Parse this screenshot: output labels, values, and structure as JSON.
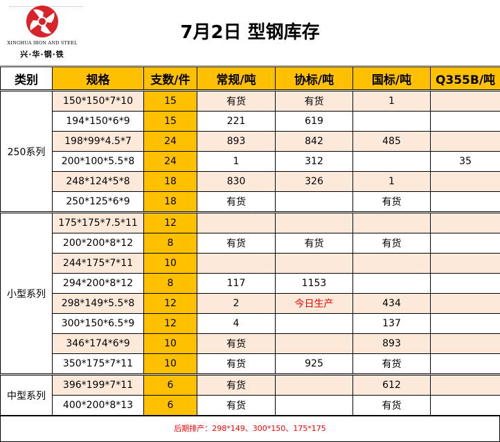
{
  "header": {
    "title": "7月2日  型钢库存",
    "logo_en": "XINGHUA IRON AND STEEL",
    "logo_cn": "兴·华·钢·铁"
  },
  "table": {
    "columns": [
      "类别",
      "规格",
      "支数/件",
      "常规/吨",
      "协标/吨",
      "国标/吨",
      "Q355B/吨"
    ],
    "groups": [
      {
        "category": "250系列",
        "rows": [
          {
            "spec": "150*150*7*10",
            "qty": "15",
            "changgui": "有货",
            "xiebiao": "有货",
            "guobiao": "1",
            "q355b": ""
          },
          {
            "spec": "194*150*6*9",
            "qty": "15",
            "changgui": "221",
            "xiebiao": "619",
            "guobiao": "",
            "q355b": ""
          },
          {
            "spec": "198*99*4.5*7",
            "qty": "24",
            "changgui": "893",
            "xiebiao": "842",
            "guobiao": "485",
            "q355b": ""
          },
          {
            "spec": "200*100*5.5*8",
            "qty": "24",
            "changgui": "1",
            "xiebiao": "312",
            "guobiao": "",
            "q355b": "35"
          },
          {
            "spec": "248*124*5*8",
            "qty": "18",
            "changgui": "830",
            "xiebiao": "326",
            "guobiao": "1",
            "q355b": ""
          },
          {
            "spec": "250*125*6*9",
            "qty": "18",
            "changgui": "有货",
            "xiebiao": "",
            "guobiao": "有货",
            "q355b": ""
          }
        ]
      },
      {
        "category": "小型系列",
        "rows": [
          {
            "spec": "175*175*7.5*11",
            "qty": "12",
            "changgui": "",
            "xiebiao": "",
            "guobiao": "",
            "q355b": ""
          },
          {
            "spec": "200*200*8*12",
            "qty": "8",
            "changgui": "有货",
            "xiebiao": "有货",
            "guobiao": "有货",
            "q355b": ""
          },
          {
            "spec": "244*175*7*11",
            "qty": "10",
            "changgui": "",
            "xiebiao": "",
            "guobiao": "",
            "q355b": ""
          },
          {
            "spec": "294*200*8*12",
            "qty": "8",
            "changgui": "117",
            "xiebiao": "1153",
            "guobiao": "",
            "q355b": ""
          },
          {
            "spec": "298*149*5.5*8",
            "qty": "12",
            "changgui": "2",
            "xiebiao": "今日生产",
            "guobiao": "434",
            "q355b": ""
          },
          {
            "spec": "300*150*6.5*9",
            "qty": "12",
            "changgui": "4",
            "xiebiao": "",
            "guobiao": "137",
            "q355b": ""
          },
          {
            "spec": "346*174*6*9",
            "qty": "10",
            "changgui": "有货",
            "xiebiao": "",
            "guobiao": "893",
            "q355b": ""
          },
          {
            "spec": "350*175*7*11",
            "qty": "10",
            "changgui": "有货",
            "xiebiao": "925",
            "guobiao": "有货",
            "q355b": ""
          }
        ]
      },
      {
        "category": "中型系列",
        "rows": [
          {
            "spec": "396*199*7*11",
            "qty": "6",
            "changgui": "有货",
            "xiebiao": "",
            "guobiao": "612",
            "q355b": ""
          },
          {
            "spec": "400*200*8*13",
            "qty": "6",
            "changgui": "有货",
            "xiebiao": "",
            "guobiao": "有货",
            "q355b": ""
          }
        ]
      }
    ]
  },
  "footer": {
    "note": "后期排产：298*149、300*150、175*175"
  },
  "colors": {
    "accent": "#ffc000",
    "row_tint": "#fde9d9",
    "highlight_text": "#ff0000",
    "logo_red": "#d9232a"
  }
}
